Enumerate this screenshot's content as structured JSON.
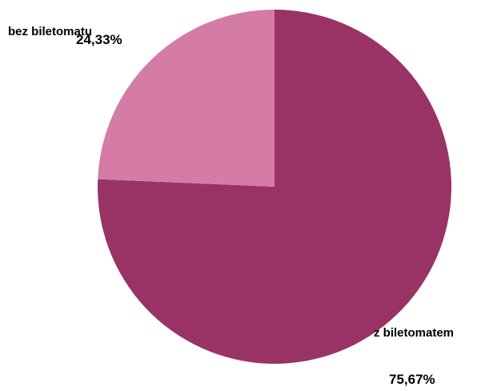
{
  "chart_data": {
    "type": "pie",
    "title": "",
    "start_angle_deg": 0,
    "direction": "clockwise",
    "slices": [
      {
        "name": "z biletomatem",
        "value": 75.67,
        "value_label": "75,67%",
        "color": "#993366"
      },
      {
        "name": "bez biletomatu",
        "value": 24.33,
        "value_label": "24,33%",
        "color": "#d47ba6"
      }
    ]
  }
}
